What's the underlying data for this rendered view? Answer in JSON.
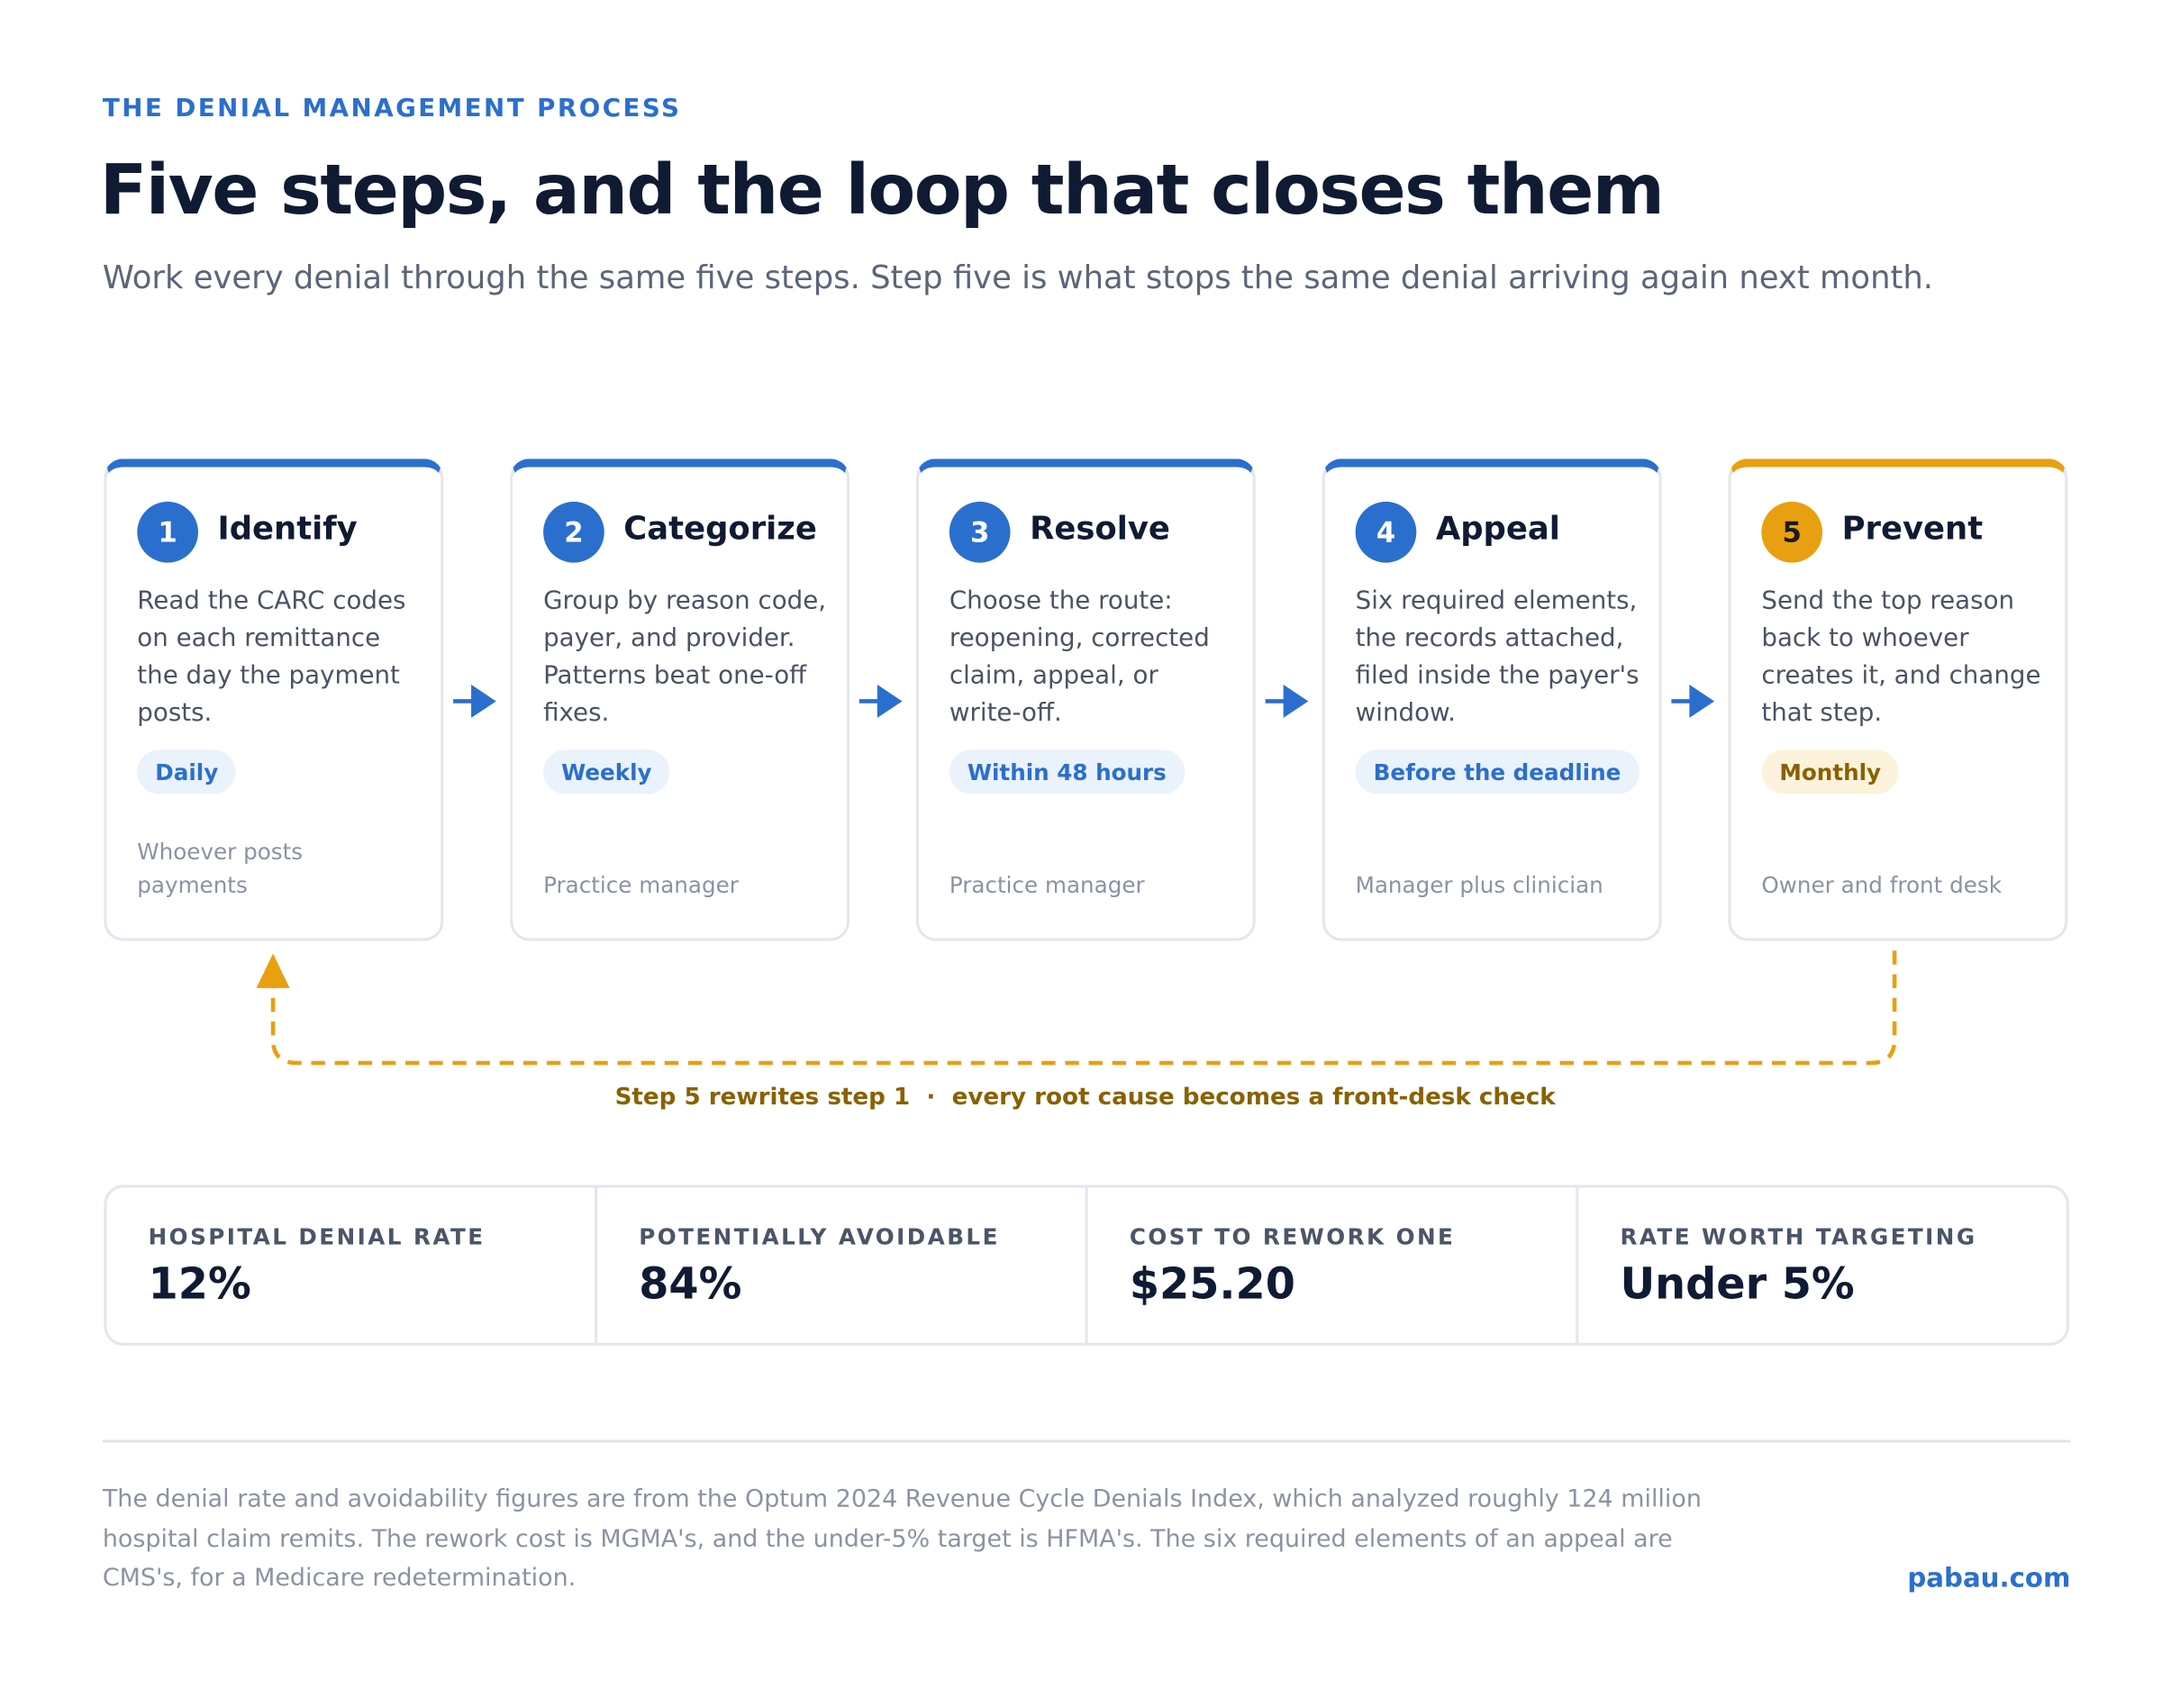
{
  "header": {
    "eyebrow": "THE DENIAL MANAGEMENT PROCESS",
    "title": "Five steps, and the loop that closes them",
    "subtitle": "Work every denial through the same five steps. Step five is what stops the same denial arriving again next month."
  },
  "steps": [
    {
      "number": "1",
      "title": "Identify",
      "description": "Read the CARC codes on each remittance the day the payment posts.",
      "cadence": "Daily",
      "owner": "Whoever posts payments"
    },
    {
      "number": "2",
      "title": "Categorize",
      "description": "Group by reason code, payer, and provider. Patterns beat one-off fixes.",
      "cadence": "Weekly",
      "owner": "Practice manager"
    },
    {
      "number": "3",
      "title": "Resolve",
      "description": "Choose the route: reopening, corrected claim, appeal, or write-off.",
      "cadence": "Within 48 hours",
      "owner": "Practice manager"
    },
    {
      "number": "4",
      "title": "Appeal",
      "description": "Six required elements, the records attached, filed inside the payer's window.",
      "cadence": "Before the deadline",
      "owner": "Manager plus clinician"
    },
    {
      "number": "5",
      "title": "Prevent",
      "description": "Send the top reason back to whoever creates it, and change that step.",
      "cadence": "Monthly",
      "owner": "Owner and front desk"
    }
  ],
  "loop": {
    "caption_start": "Step 5 rewrites step 1",
    "separator": "·",
    "caption_end": "every root cause becomes a front-desk check"
  },
  "stats": [
    {
      "label": "HOSPITAL DENIAL RATE",
      "value": "12%"
    },
    {
      "label": "POTENTIALLY AVOIDABLE",
      "value": "84%"
    },
    {
      "label": "COST TO REWORK ONE",
      "value": "$25.20"
    },
    {
      "label": "RATE WORTH TARGETING",
      "value": "Under 5%"
    }
  ],
  "footer": {
    "note": "The denial rate and avoidability figures are from the Optum 2024 Revenue Cycle Denials Index, which analyzed roughly 124 million hospital claim remits. The rework cost is MGMA's, and the under-5% target is HFMA's. The six required elements of an appeal are CMS's, for a Medicare redetermination.",
    "brand": "pabau.com"
  }
}
